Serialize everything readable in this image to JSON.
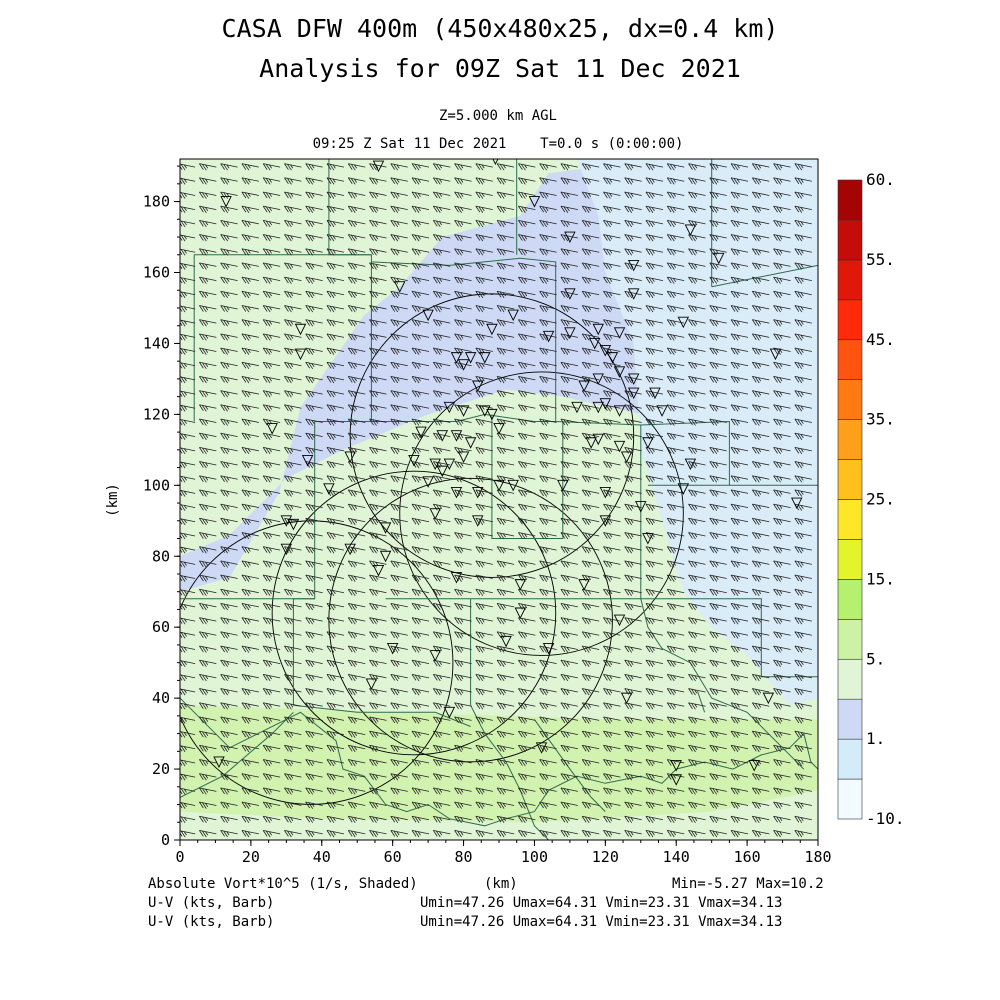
{
  "header": {
    "title_line1": "CASA DFW 400m (450x480x25, dx=0.4 km)",
    "title_line2": "Analysis for 09Z Sat 11 Dec 2021",
    "level": "Z=5.000 km AGL",
    "time": "09:25 Z Sat 11 Dec 2021    T=0.0 s (0:00:00)"
  },
  "footer": {
    "field": "Absolute Vort*10^5 (1/s, Shaded)",
    "xunit": "(km)",
    "minmax": "Min=-5.27 Max=10.2",
    "wind1_label": "U-V (kts, Barb)",
    "wind1_stats": "Umin=47.26 Umax=64.31 Vmin=23.31 Vmax=34.13",
    "wind2_label": "U-V (kts, Barb)",
    "wind2_stats": "Umin=47.26 Umax=64.31 Vmin=23.31 Vmax=34.13"
  },
  "chart_data": {
    "type": "heatmap",
    "xlabel": "",
    "ylabel": "(km)",
    "xlim": [
      0,
      180
    ],
    "ylim": [
      0,
      192
    ],
    "xticks": [
      0,
      20,
      40,
      60,
      80,
      100,
      120,
      140,
      160,
      180
    ],
    "yticks": [
      0,
      20,
      40,
      60,
      80,
      100,
      120,
      140,
      160,
      180
    ],
    "colorbar": {
      "labels": [
        "60.",
        "55.",
        "45.",
        "35.",
        "25.",
        "15.",
        "5.",
        "1.",
        "-10."
      ],
      "colors": [
        "#f2fbff",
        "#d4ecf9",
        "#cdd9f5",
        "#dff5d5",
        "#ccf2a6",
        "#b5f06e",
        "#e3f52a",
        "#ffe628",
        "#ffc01e",
        "#ffa01a",
        "#ff7a12",
        "#ff5310",
        "#ff2a0a",
        "#e0180a",
        "#c40c08",
        "#a40404"
      ]
    },
    "shading_regions": [
      {
        "value_class": "1 to 2.5",
        "color": "#cdd9f5",
        "points": [
          [
            0,
            70
          ],
          [
            14,
            74
          ],
          [
            28,
            98
          ],
          [
            34,
            122
          ],
          [
            52,
            148
          ],
          [
            62,
            156
          ],
          [
            74,
            170
          ],
          [
            96,
            176
          ],
          [
            104,
            188
          ],
          [
            136,
            192
          ],
          [
            180,
            192
          ],
          [
            180,
            120
          ],
          [
            130,
            120
          ],
          [
            108,
            125
          ],
          [
            92,
            127
          ],
          [
            70,
            120
          ],
          [
            46,
            110
          ],
          [
            30,
            102
          ],
          [
            14,
            86
          ],
          [
            0,
            80
          ]
        ]
      },
      {
        "value_class": "-1 to 1",
        "color": "#d9ecf8",
        "points": [
          [
            112,
            192
          ],
          [
            180,
            192
          ],
          [
            180,
            40
          ],
          [
            172,
            38
          ],
          [
            160,
            52
          ],
          [
            150,
            60
          ],
          [
            142,
            70
          ],
          [
            136,
            90
          ],
          [
            130,
            110
          ],
          [
            128,
            140
          ],
          [
            120,
            160
          ],
          [
            118,
            176
          ]
        ]
      },
      {
        "value_class": "2.5 to 5",
        "color": "#dff5d5",
        "points": [
          [
            0,
            0
          ],
          [
            180,
            0
          ],
          [
            180,
            38
          ],
          [
            140,
            36
          ],
          [
            100,
            34
          ],
          [
            60,
            38
          ],
          [
            0,
            40
          ]
        ]
      },
      {
        "value_class": "5 to 10",
        "color": "#d2f2b0",
        "points": [
          [
            0,
            8
          ],
          [
            40,
            6
          ],
          [
            100,
            5
          ],
          [
            150,
            8
          ],
          [
            180,
            14
          ],
          [
            180,
            34
          ],
          [
            120,
            34
          ],
          [
            60,
            36
          ],
          [
            0,
            38
          ]
        ]
      }
    ],
    "wind_barbs": {
      "units": "kts",
      "u_range": [
        47.26,
        64.31
      ],
      "v_range": [
        23.31,
        34.13
      ]
    },
    "radar_range_rings": [
      {
        "center": [
          37,
          50
        ],
        "radius_km": 40
      },
      {
        "center": [
          66,
          64
        ],
        "radius_km": 40
      },
      {
        "center": [
          88,
          114
        ],
        "radius_km": 40
      },
      {
        "center": [
          102,
          92
        ],
        "radius_km": 40
      },
      {
        "center": [
          82,
          62
        ],
        "radius_km": 40
      }
    ],
    "station_markers": [
      [
        13,
        180
      ],
      [
        11,
        22
      ],
      [
        56,
        190
      ],
      [
        89,
        192
      ],
      [
        100,
        180
      ],
      [
        110,
        170
      ],
      [
        144,
        172
      ],
      [
        152,
        164
      ],
      [
        128,
        162
      ],
      [
        62,
        156
      ],
      [
        110,
        154
      ],
      [
        128,
        154
      ],
      [
        142,
        146
      ],
      [
        70,
        148
      ],
      [
        94,
        148
      ],
      [
        110,
        143
      ],
      [
        118,
        144
      ],
      [
        124,
        143
      ],
      [
        34,
        144
      ],
      [
        88,
        144
      ],
      [
        104,
        142
      ],
      [
        117,
        140
      ],
      [
        120,
        138
      ],
      [
        122,
        136
      ],
      [
        168,
        137
      ],
      [
        34,
        137
      ],
      [
        78,
        136
      ],
      [
        80,
        134
      ],
      [
        82,
        136
      ],
      [
        86,
        136
      ],
      [
        124,
        132
      ],
      [
        128,
        130
      ],
      [
        118,
        130
      ],
      [
        114,
        128
      ],
      [
        128,
        126
      ],
      [
        134,
        126
      ],
      [
        84,
        128
      ],
      [
        76,
        122
      ],
      [
        80,
        121
      ],
      [
        86,
        121
      ],
      [
        88,
        120
      ],
      [
        112,
        122
      ],
      [
        118,
        122
      ],
      [
        120,
        123
      ],
      [
        124,
        121
      ],
      [
        136,
        121
      ],
      [
        26,
        116
      ],
      [
        68,
        115
      ],
      [
        74,
        114
      ],
      [
        78,
        114
      ],
      [
        82,
        112
      ],
      [
        90,
        116
      ],
      [
        116,
        112
      ],
      [
        118,
        113
      ],
      [
        124,
        111
      ],
      [
        132,
        112
      ],
      [
        36,
        107
      ],
      [
        48,
        108
      ],
      [
        66,
        107
      ],
      [
        72,
        106
      ],
      [
        74,
        104
      ],
      [
        76,
        106
      ],
      [
        80,
        108
      ],
      [
        126,
        108
      ],
      [
        144,
        106
      ],
      [
        42,
        99
      ],
      [
        70,
        101
      ],
      [
        78,
        98
      ],
      [
        84,
        98
      ],
      [
        90,
        100
      ],
      [
        94,
        100
      ],
      [
        108,
        100
      ],
      [
        120,
        98
      ],
      [
        130,
        94
      ],
      [
        142,
        99
      ],
      [
        174,
        95
      ],
      [
        30,
        90
      ],
      [
        32,
        89
      ],
      [
        58,
        88
      ],
      [
        72,
        92
      ],
      [
        84,
        90
      ],
      [
        120,
        90
      ],
      [
        132,
        85
      ],
      [
        30,
        82
      ],
      [
        48,
        82
      ],
      [
        58,
        80
      ],
      [
        56,
        76
      ],
      [
        78,
        74
      ],
      [
        96,
        72
      ],
      [
        114,
        72
      ],
      [
        96,
        64
      ],
      [
        124,
        62
      ],
      [
        60,
        54
      ],
      [
        72,
        52
      ],
      [
        92,
        56
      ],
      [
        104,
        54
      ],
      [
        54,
        44
      ],
      [
        76,
        36
      ],
      [
        126,
        40
      ],
      [
        166,
        40
      ],
      [
        102,
        26
      ],
      [
        140,
        21
      ],
      [
        140,
        17
      ],
      [
        162,
        21
      ]
    ],
    "boundaries": [
      [
        [
          0,
          40
        ],
        [
          14,
          26
        ],
        [
          34,
          36
        ],
        [
          44,
          28
        ],
        [
          46,
          20
        ],
        [
          52,
          18
        ],
        [
          58,
          10
        ],
        [
          64,
          8
        ],
        [
          70,
          10
        ],
        [
          76,
          6
        ],
        [
          86,
          4
        ],
        [
          92,
          6
        ],
        [
          100,
          8
        ],
        [
          104,
          14
        ],
        [
          112,
          18
        ],
        [
          120,
          16
        ],
        [
          130,
          18
        ],
        [
          136,
          16
        ],
        [
          140,
          20
        ],
        [
          148,
          22
        ],
        [
          156,
          20
        ],
        [
          164,
          24
        ],
        [
          172,
          26
        ],
        [
          176,
          30
        ],
        [
          178,
          22
        ],
        [
          180,
          20
        ]
      ],
      [
        [
          0,
          12
        ],
        [
          12,
          18
        ],
        [
          26,
          30
        ],
        [
          32,
          36
        ]
      ],
      [
        [
          42,
          192
        ],
        [
          42,
          165
        ],
        [
          54,
          165
        ],
        [
          54,
          118
        ],
        [
          38,
          118
        ],
        [
          38,
          68
        ],
        [
          0,
          68
        ]
      ],
      [
        [
          4,
          165
        ],
        [
          4,
          118
        ]
      ],
      [
        [
          4,
          165
        ],
        [
          54,
          165
        ]
      ],
      [
        [
          54,
          163
        ],
        [
          76,
          162
        ],
        [
          96,
          164
        ],
        [
          106,
          163
        ],
        [
          106,
          118
        ],
        [
          130,
          117
        ],
        [
          130,
          68
        ],
        [
          164,
          68
        ],
        [
          164,
          46
        ],
        [
          180,
          46
        ],
        [
          180,
          100
        ],
        [
          162,
          100
        ],
        [
          155,
          100
        ],
        [
          155,
          118
        ],
        [
          130,
          117
        ]
      ],
      [
        [
          106,
          118
        ],
        [
          100,
          118
        ],
        [
          86,
          120
        ],
        [
          78,
          118
        ],
        [
          62,
          118
        ],
        [
          54,
          118
        ]
      ],
      [
        [
          38,
          68
        ],
        [
          32,
          68
        ],
        [
          32,
          38
        ]
      ],
      [
        [
          32,
          38
        ],
        [
          50,
          36
        ],
        [
          72,
          36
        ],
        [
          82,
          32
        ]
      ],
      [
        [
          82,
          68
        ],
        [
          82,
          38
        ]
      ],
      [
        [
          58,
          68
        ],
        [
          82,
          68
        ],
        [
          130,
          68
        ]
      ],
      [
        [
          130,
          68
        ],
        [
          132,
          60
        ],
        [
          136,
          54
        ],
        [
          144,
          50
        ],
        [
          150,
          40
        ],
        [
          160,
          36
        ],
        [
          166,
          30
        ],
        [
          170,
          26
        ],
        [
          176,
          20
        ]
      ],
      [
        [
          150,
          156
        ],
        [
          180,
          162
        ]
      ],
      [
        [
          150,
          156
        ],
        [
          150,
          192
        ]
      ],
      [
        [
          95,
          192
        ],
        [
          95,
          165
        ]
      ],
      [
        [
          146,
          42
        ],
        [
          148,
          36
        ]
      ],
      [
        [
          100,
          34
        ],
        [
          110,
          20
        ],
        [
          116,
          12
        ],
        [
          120,
          8
        ]
      ],
      [
        [
          82,
          38
        ],
        [
          86,
          30
        ],
        [
          92,
          22
        ],
        [
          96,
          14
        ],
        [
          100,
          4
        ],
        [
          104,
          0
        ]
      ],
      [
        [
          132,
          100
        ],
        [
          155,
          100
        ]
      ],
      [
        [
          88,
          120
        ],
        [
          88,
          85
        ],
        [
          108,
          85
        ],
        [
          108,
          118
        ]
      ]
    ]
  }
}
